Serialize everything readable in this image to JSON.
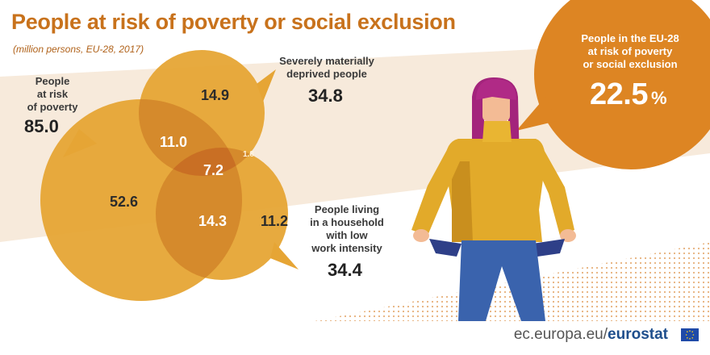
{
  "title": "People at risk of poverty or social exclusion",
  "subtitle": "(million persons, EU-28, 2017)",
  "circles": {
    "poverty": {
      "label_lines": [
        "People",
        "at risk",
        "of poverty"
      ],
      "total": "85.0"
    },
    "deprived": {
      "label_lines": [
        "Severely materially",
        "deprived people"
      ],
      "total": "34.8"
    },
    "low_work": {
      "label_lines": [
        "People living",
        "in a household",
        "with low",
        "work intensity"
      ],
      "total": "34.4"
    }
  },
  "regions": {
    "poverty_only": "52.6",
    "deprived_only": "14.9",
    "low_work_only": "11.2",
    "poverty_and_deprived": "11.0",
    "poverty_and_low_work": "14.3",
    "deprived_and_low_work": "1.8",
    "all_three": "7.2"
  },
  "bubble": {
    "label_lines": [
      "People in the EU-28",
      "at risk of poverty",
      "or social exclusion"
    ],
    "value": "22.5",
    "unit": "%"
  },
  "footer": {
    "site": "ec.europa.eu/",
    "brand": "eurostat"
  },
  "colors": {
    "title": "#c8721c",
    "circle": "#e6a535",
    "overlap": "#d58a2c",
    "center": "#c96f24",
    "bubble": "#dd8523",
    "background_band": "#f7eadb"
  }
}
